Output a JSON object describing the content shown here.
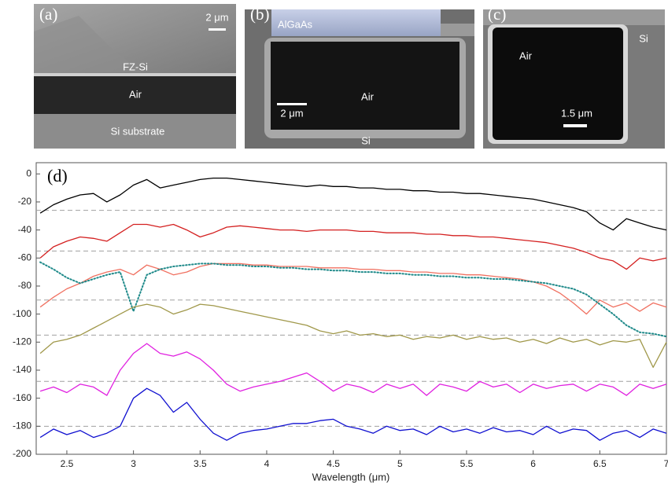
{
  "panels": [
    {
      "label": "(a)",
      "texts": [
        "2 μm",
        "FZ-Si",
        "Air",
        "Si substrate"
      ]
    },
    {
      "label": "(b)",
      "texts": [
        "AlGaAs",
        "Air",
        "2 μm",
        "Si"
      ]
    },
    {
      "label": "(c)",
      "texts": [
        "Air",
        "Si",
        "1.5 μm"
      ]
    }
  ],
  "chart_data": {
    "type": "line",
    "panel_label": "(d)",
    "x_label": "Wavelength (μm)",
    "xlim": [
      2.27,
      7
    ],
    "ylim": [
      -200,
      8
    ],
    "xticks": [
      2.5,
      3,
      3.5,
      4,
      4.5,
      5,
      5.5,
      6,
      6.5,
      7
    ],
    "yticks": [
      0,
      -20,
      -40,
      -60,
      -80,
      -100,
      -120,
      -140,
      -160,
      -180,
      -200
    ],
    "reference_lines": [
      -26,
      -55,
      -90,
      -115,
      -148,
      -180
    ],
    "reference_color": "#a0a0a0",
    "x": [
      2.3,
      2.4,
      2.5,
      2.6,
      2.7,
      2.8,
      2.9,
      3.0,
      3.1,
      3.2,
      3.3,
      3.4,
      3.5,
      3.6,
      3.7,
      3.8,
      3.9,
      4.0,
      4.1,
      4.2,
      4.3,
      4.4,
      4.5,
      4.6,
      4.7,
      4.8,
      4.9,
      5.0,
      5.1,
      5.2,
      5.3,
      5.4,
      5.5,
      5.6,
      5.7,
      5.8,
      5.9,
      6.0,
      6.1,
      6.2,
      6.3,
      6.4,
      6.5,
      6.6,
      6.7,
      6.8,
      6.9,
      7.0
    ],
    "series": [
      {
        "color": "#000000",
        "line_style": "solid",
        "values": [
          -28,
          -22,
          -18,
          -15,
          -14,
          -20,
          -15,
          -8,
          -4,
          -10,
          -8,
          -6,
          -4,
          -3,
          -3,
          -4,
          -5,
          -6,
          -7,
          -8,
          -9,
          -8,
          -9,
          -9,
          -10,
          -10,
          -11,
          -11,
          -12,
          -12,
          -13,
          -13,
          -14,
          -14,
          -15,
          -16,
          -17,
          -18,
          -20,
          -22,
          -24,
          -27,
          -35,
          -40,
          -32,
          -35,
          -38,
          -40
        ]
      },
      {
        "color": "#d42020",
        "line_style": "solid",
        "values": [
          -60,
          -52,
          -48,
          -45,
          -46,
          -48,
          -42,
          -36,
          -36,
          -38,
          -36,
          -40,
          -45,
          -42,
          -38,
          -37,
          -38,
          -39,
          -40,
          -40,
          -41,
          -40,
          -40,
          -40,
          -41,
          -41,
          -42,
          -42,
          -42,
          -43,
          -43,
          -44,
          -44,
          -45,
          -45,
          -46,
          -47,
          -48,
          -49,
          -51,
          -53,
          -56,
          -60,
          -62,
          -68,
          -60,
          -62,
          -60
        ]
      },
      {
        "color": "#f07060",
        "line_style": "solid",
        "values": [
          -95,
          -88,
          -82,
          -78,
          -73,
          -70,
          -68,
          -72,
          -65,
          -68,
          -72,
          -70,
          -66,
          -64,
          -64,
          -64,
          -65,
          -65,
          -66,
          -66,
          -66,
          -67,
          -67,
          -67,
          -68,
          -68,
          -69,
          -69,
          -70,
          -70,
          -71,
          -71,
          -72,
          -72,
          -73,
          -74,
          -75,
          -77,
          -80,
          -85,
          -92,
          -100,
          -90,
          -95,
          -92,
          -98,
          -92,
          -95
        ]
      },
      {
        "color": "#1f8a8a",
        "line_style": "dotted",
        "values": [
          -63,
          -68,
          -74,
          -78,
          -75,
          -72,
          -70,
          -98,
          -72,
          -68,
          -66,
          -65,
          -64,
          -64,
          -65,
          -65,
          -66,
          -66,
          -67,
          -67,
          -68,
          -68,
          -69,
          -69,
          -70,
          -70,
          -71,
          -71,
          -72,
          -72,
          -73,
          -73,
          -74,
          -74,
          -75,
          -75,
          -76,
          -77,
          -78,
          -80,
          -82,
          -86,
          -93,
          -100,
          -108,
          -113,
          -114,
          -116
        ]
      },
      {
        "color": "#a0984a",
        "line_style": "solid",
        "values": [
          -128,
          -120,
          -118,
          -115,
          -110,
          -105,
          -100,
          -95,
          -93,
          -95,
          -100,
          -97,
          -93,
          -94,
          -96,
          -98,
          -100,
          -102,
          -104,
          -106,
          -108,
          -112,
          -114,
          -112,
          -115,
          -114,
          -116,
          -115,
          -118,
          -116,
          -117,
          -115,
          -118,
          -116,
          -118,
          -117,
          -120,
          -118,
          -121,
          -117,
          -120,
          -118,
          -122,
          -119,
          -120,
          -118,
          -138,
          -120
        ]
      },
      {
        "color": "#e020e0",
        "line_style": "solid",
        "values": [
          -155,
          -152,
          -156,
          -150,
          -152,
          -158,
          -140,
          -128,
          -121,
          -128,
          -130,
          -127,
          -132,
          -140,
          -150,
          -155,
          -152,
          -150,
          -148,
          -145,
          -142,
          -148,
          -155,
          -150,
          -152,
          -156,
          -150,
          -153,
          -150,
          -158,
          -150,
          -152,
          -155,
          -148,
          -152,
          -150,
          -156,
          -150,
          -153,
          -151,
          -150,
          -155,
          -150,
          -152,
          -158,
          -150,
          -153,
          -150
        ]
      },
      {
        "color": "#1010d0",
        "line_style": "solid",
        "values": [
          -188,
          -182,
          -186,
          -183,
          -188,
          -185,
          -180,
          -160,
          -153,
          -158,
          -170,
          -163,
          -175,
          -185,
          -190,
          -185,
          -183,
          -182,
          -180,
          -178,
          -178,
          -176,
          -175,
          -180,
          -182,
          -185,
          -180,
          -183,
          -182,
          -186,
          -180,
          -184,
          -182,
          -185,
          -181,
          -184,
          -183,
          -186,
          -180,
          -185,
          -182,
          -183,
          -190,
          -185,
          -183,
          -188,
          -182,
          -185
        ]
      }
    ]
  }
}
